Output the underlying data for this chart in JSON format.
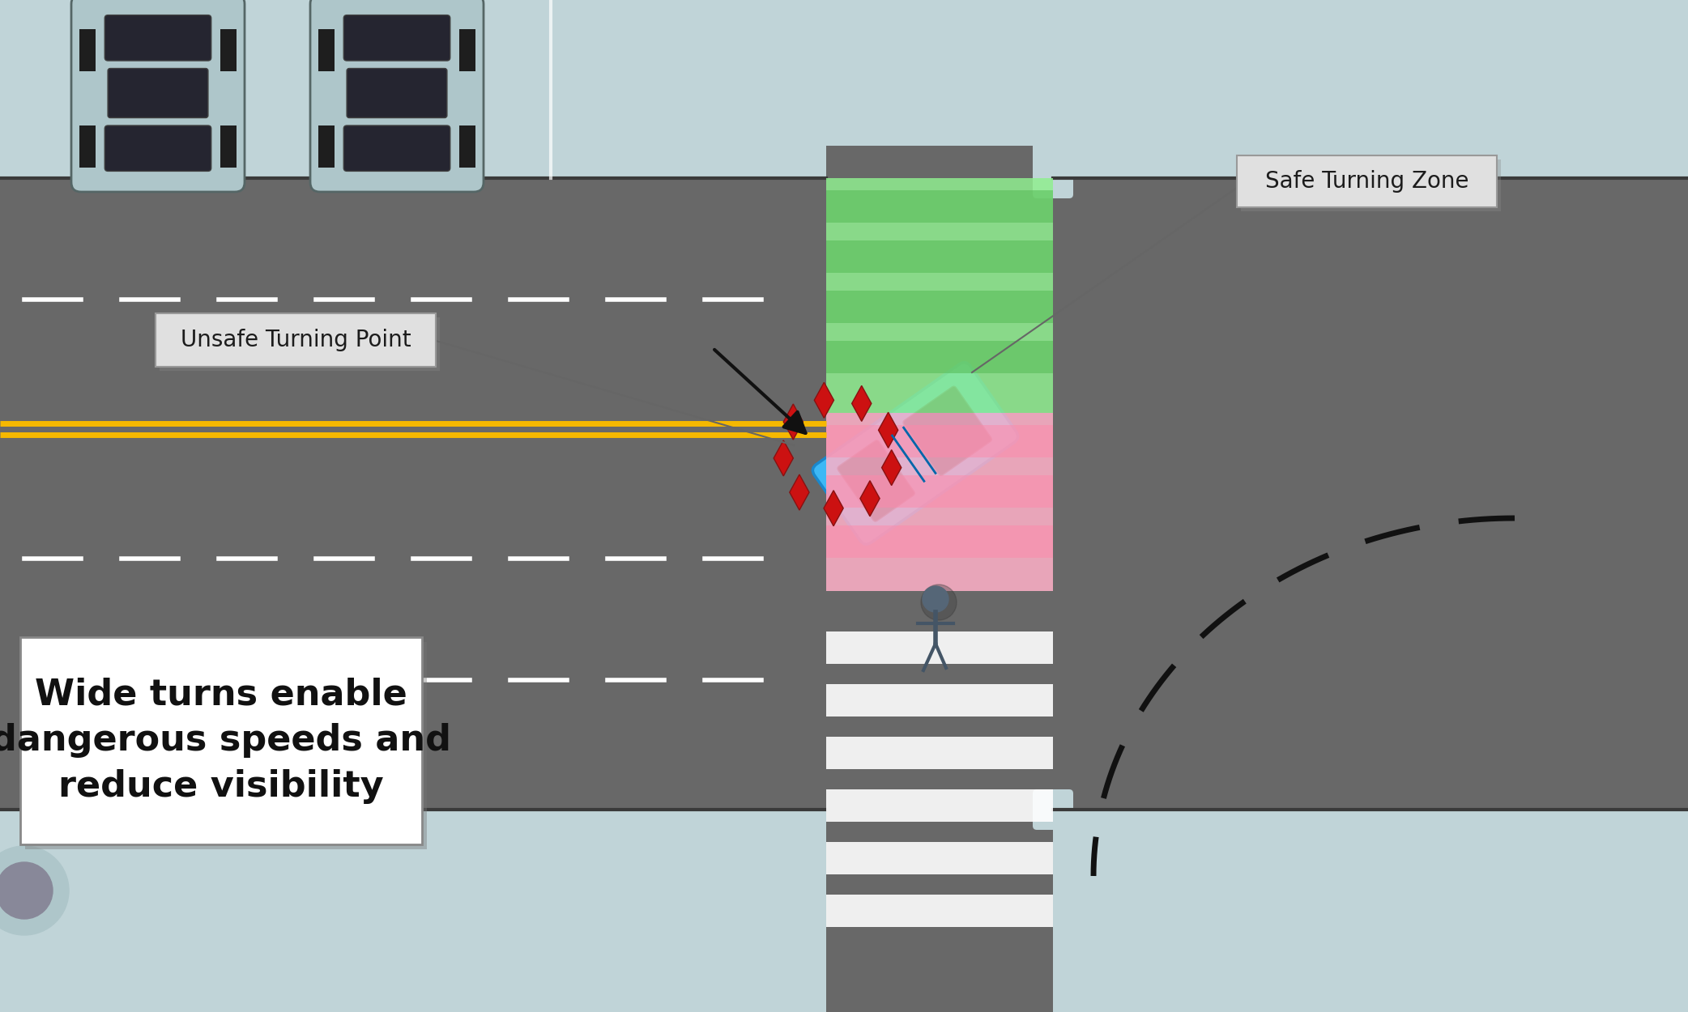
{
  "road_color": "#686868",
  "sidewalk_color": "#c0d4d8",
  "road_marking_white": "#ffffff",
  "road_marking_yellow": "#f5b800",
  "crosswalk_safe_color": "#90ee90",
  "crosswalk_unsafe_color": "#ffb0c8",
  "car_parked_color": "#aec6ca",
  "car_parked_window": "#252530",
  "car_turning_color": "#3db8f5",
  "car_turning_dark": "#1a88cc",
  "car_window_color": "#151525",
  "spark_color": "#cc1111",
  "spark_dark": "#881111",
  "label_bg": "#e0e0e0",
  "label_border": "#999999",
  "label_text": "#1c1c1c",
  "warn_bg": "#ffffff",
  "warn_border": "#888888",
  "warn_text": "#111111",
  "dashed_color": "#111111",
  "arrow_color": "#111111",
  "label1_text": "Unsafe Turning Point",
  "label2_text": "Safe Turning Zone",
  "warn_text_content": "Wide turns enable\ndangerous speeds and\nreduce visibility",
  "fig_w": 20.84,
  "fig_h": 12.5,
  "dpi": 100
}
